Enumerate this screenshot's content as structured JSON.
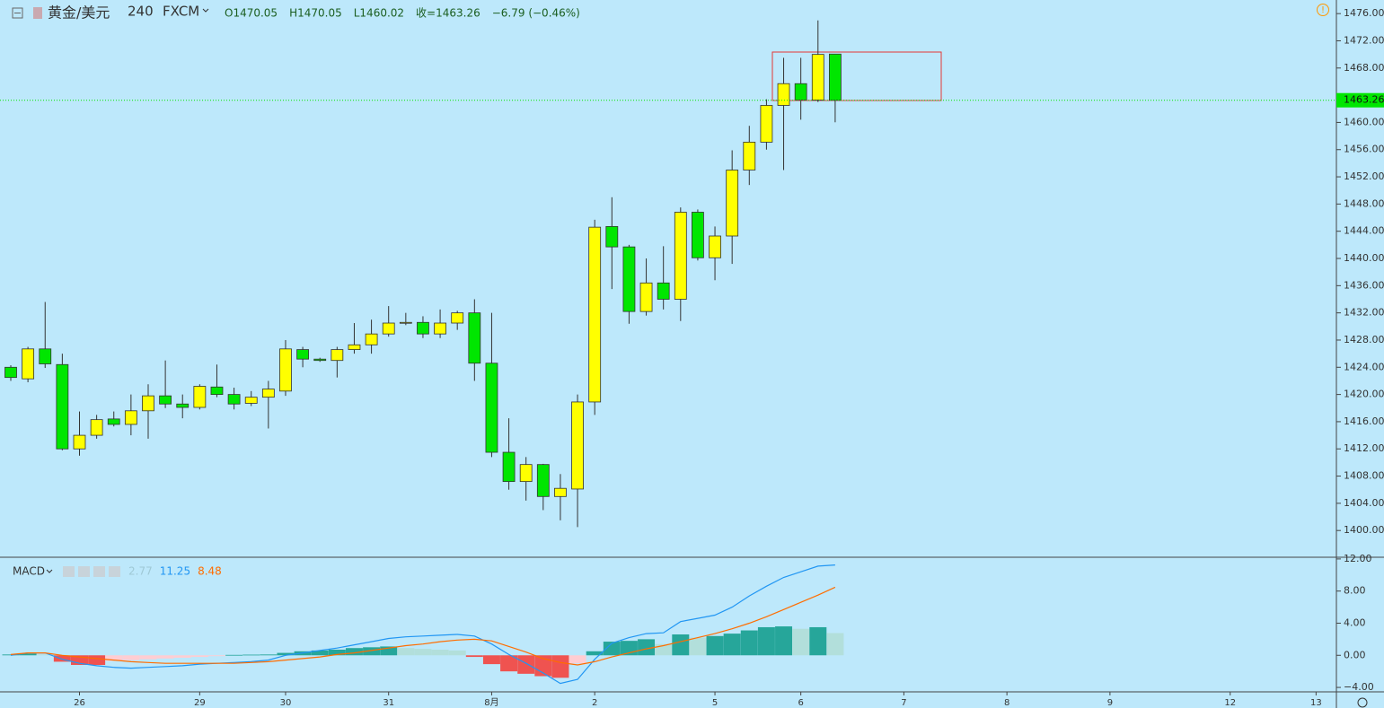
{
  "chart_data": [
    {
      "type": "candlestick",
      "title": "黄金/美元",
      "interval": "240",
      "source": "FXCM",
      "ohlc_labels": [
        "O1470.05",
        "H1470.05",
        "L1460.02",
        "收=1463.26",
        "−6.79 (−0.46%)"
      ],
      "open": [
        1424,
        1422.3,
        1426.7,
        1424.4,
        1412,
        1414,
        1416.4,
        1415.6,
        1417.6,
        1419.8,
        1418.6,
        1418.1,
        1421.1,
        1420,
        1418.7,
        1419.6,
        1420.5,
        1426.6,
        1425.2,
        1425,
        1426.6,
        1427.3,
        1428.9,
        1430.5,
        1430.6,
        1428.9,
        1430.5,
        1432,
        1424.6,
        1411.5,
        1407.2,
        1409.7,
        1405,
        1406.1,
        1418.9,
        1444.7,
        1441.7,
        1432.2,
        1436.4,
        1434,
        1446.8,
        1440.1,
        1443.3,
        1453,
        1457.1,
        1462.5,
        1465.7,
        1463.3,
        1470.05
      ],
      "high": [
        1424.3,
        1427,
        1433.6,
        1426,
        1417.5,
        1417,
        1417.5,
        1420,
        1421.5,
        1425,
        1420,
        1421.5,
        1424.4,
        1421,
        1420.5,
        1422,
        1428,
        1427,
        1425.4,
        1427,
        1430.5,
        1431,
        1433,
        1432,
        1431.5,
        1432.5,
        1432.3,
        1434,
        1432,
        1416.5,
        1410.8,
        1409.8,
        1408.3,
        1420,
        1445.7,
        1449,
        1442,
        1440,
        1441.8,
        1447.5,
        1447.2,
        1444.7,
        1455.9,
        1459.5,
        1463.4,
        1469.5,
        1469.5,
        1475,
        1470.05
      ],
      "low": [
        1422,
        1421.8,
        1423.9,
        1411.8,
        1411,
        1413.5,
        1415.3,
        1414,
        1413.5,
        1418,
        1416.5,
        1417.8,
        1419.6,
        1417.8,
        1418.3,
        1415,
        1419.8,
        1424,
        1424.8,
        1422.5,
        1426,
        1426,
        1428.5,
        1430.2,
        1428.3,
        1428.3,
        1429.5,
        1422,
        1410.8,
        1406,
        1404.4,
        1403,
        1401.5,
        1400.5,
        1417,
        1435.5,
        1430.4,
        1431.6,
        1432.5,
        1430.8,
        1439.7,
        1436.8,
        1439.2,
        1450.8,
        1456,
        1453,
        1460.4,
        1463,
        1460.02
      ],
      "close": [
        1422.5,
        1426.7,
        1424.5,
        1412,
        1414,
        1416.3,
        1415.6,
        1417.6,
        1419.8,
        1418.6,
        1418.1,
        1421.2,
        1420,
        1418.6,
        1419.6,
        1420.8,
        1426.7,
        1425.2,
        1425,
        1426.6,
        1427.3,
        1428.9,
        1430.5,
        1430.6,
        1428.9,
        1430.5,
        1432,
        1424.6,
        1411.5,
        1407.2,
        1409.7,
        1405,
        1406.2,
        1418.9,
        1444.6,
        1441.7,
        1432.2,
        1436.4,
        1434,
        1446.8,
        1440.1,
        1443.3,
        1453,
        1457.1,
        1462.5,
        1465.7,
        1463.3,
        1470,
        1463.26
      ],
      "up_color": "#ffff00",
      "down_color": "#00e600",
      "last_price": 1463.26,
      "last_price_color": "#00e600",
      "xlim": [
        -0.6275,
        77.184
      ],
      "xticks": [
        {
          "value": 4,
          "label": "26"
        },
        {
          "value": 11,
          "label": "29"
        },
        {
          "value": 16,
          "label": "30"
        },
        {
          "value": 22,
          "label": "31"
        },
        {
          "value": 28,
          "label": "8月"
        },
        {
          "value": 34,
          "label": "2"
        },
        {
          "value": 41,
          "label": "5"
        },
        {
          "value": 46,
          "label": "6"
        },
        {
          "value": 52,
          "label": "7"
        },
        {
          "value": 58,
          "label": "8"
        },
        {
          "value": 64,
          "label": "9"
        },
        {
          "value": 71,
          "label": "12"
        },
        {
          "value": 76,
          "label": "13"
        }
      ],
      "ylim": [
        1396.2,
        1478
      ],
      "yticks": [
        {
          "value": 1400,
          "label": "1400.00"
        },
        {
          "value": 1404,
          "label": "1404.00"
        },
        {
          "value": 1408,
          "label": "1408.00"
        },
        {
          "value": 1412,
          "label": "1412.00"
        },
        {
          "value": 1416,
          "label": "1416.00"
        },
        {
          "value": 1420,
          "label": "1420.00"
        },
        {
          "value": 1424,
          "label": "1424.00"
        },
        {
          "value": 1428,
          "label": "1428.00"
        },
        {
          "value": 1432,
          "label": "1432.00"
        },
        {
          "value": 1436,
          "label": "1436.00"
        },
        {
          "value": 1440,
          "label": "1440.00"
        },
        {
          "value": 1444,
          "label": "1444.00"
        },
        {
          "value": 1448,
          "label": "1448.00"
        },
        {
          "value": 1452,
          "label": "1452.00"
        },
        {
          "value": 1456,
          "label": "1456.00"
        },
        {
          "value": 1460,
          "label": "1460.00"
        },
        {
          "value": 1468,
          "label": "1468.00"
        },
        {
          "value": 1472,
          "label": "1472.00"
        },
        {
          "value": 1476,
          "label": "1476.00"
        }
      ]
    },
    {
      "type": "macd",
      "title": "MACD",
      "readout": [
        2.77,
        11.25,
        8.48
      ],
      "histogram": [
        0.1,
        0.2,
        0.1,
        -0.8,
        -1.2,
        -1.2,
        -0.7,
        -0.6,
        -0.5,
        -0.4,
        -0.3,
        -0.2,
        -0.1,
        0.05,
        0.08,
        0.1,
        0.3,
        0.5,
        0.6,
        0.7,
        0.9,
        1.0,
        1.1,
        0.9,
        0.8,
        0.7,
        0.6,
        -0.2,
        -1.1,
        -2.0,
        -2.3,
        -2.6,
        -2.8,
        -1.0,
        0.5,
        1.7,
        1.8,
        2.0,
        1.4,
        2.6,
        2.2,
        2.4,
        2.7,
        3.1,
        3.5,
        3.6,
        3.3,
        3.5,
        2.77
      ],
      "macd": [
        0.0,
        0.3,
        0.3,
        -0.5,
        -1.0,
        -1.3,
        -1.5,
        -1.6,
        -1.5,
        -1.4,
        -1.3,
        -1.1,
        -1.0,
        -0.9,
        -0.8,
        -0.6,
        0.0,
        0.3,
        0.6,
        0.9,
        1.3,
        1.7,
        2.1,
        2.3,
        2.4,
        2.5,
        2.6,
        2.4,
        1.4,
        0.1,
        -1.0,
        -2.2,
        -3.5,
        -3.0,
        -0.5,
        1.5,
        2.2,
        2.7,
        2.8,
        4.2,
        4.6,
        5.0,
        6.0,
        7.4,
        8.6,
        9.7,
        10.4,
        11.1,
        11.25
      ],
      "signal": [
        0.1,
        0.3,
        0.3,
        0.0,
        -0.2,
        -0.4,
        -0.6,
        -0.8,
        -0.9,
        -1.0,
        -1.0,
        -1.0,
        -1.0,
        -1.0,
        -0.9,
        -0.8,
        -0.6,
        -0.4,
        -0.2,
        0.1,
        0.3,
        0.6,
        0.9,
        1.2,
        1.4,
        1.7,
        1.9,
        2.0,
        1.8,
        1.1,
        0.4,
        -0.4,
        -0.9,
        -1.2,
        -0.8,
        -0.2,
        0.3,
        0.8,
        1.2,
        1.7,
        2.2,
        2.7,
        3.3,
        4.0,
        4.8,
        5.7,
        6.6,
        7.5,
        8.48
      ],
      "histogram_colors": [
        "#26a69a",
        "#b2dfdb",
        "#ef5350",
        "#ffcdd2"
      ],
      "macd_color": "#2196f3",
      "signal_color": "#ff6d00",
      "readout_colors": [
        "#9fc9d6",
        "#2196f3",
        "#ff6d00"
      ],
      "ylim": [
        -4.44,
        12.1
      ],
      "yticks": [
        {
          "value": 12,
          "label": "12.00"
        },
        {
          "value": 8,
          "label": "8.00"
        },
        {
          "value": 4,
          "label": "4.00"
        },
        {
          "value": 0,
          "label": "0.00"
        },
        {
          "value": -4,
          "label": "−4.00"
        }
      ]
    }
  ]
}
